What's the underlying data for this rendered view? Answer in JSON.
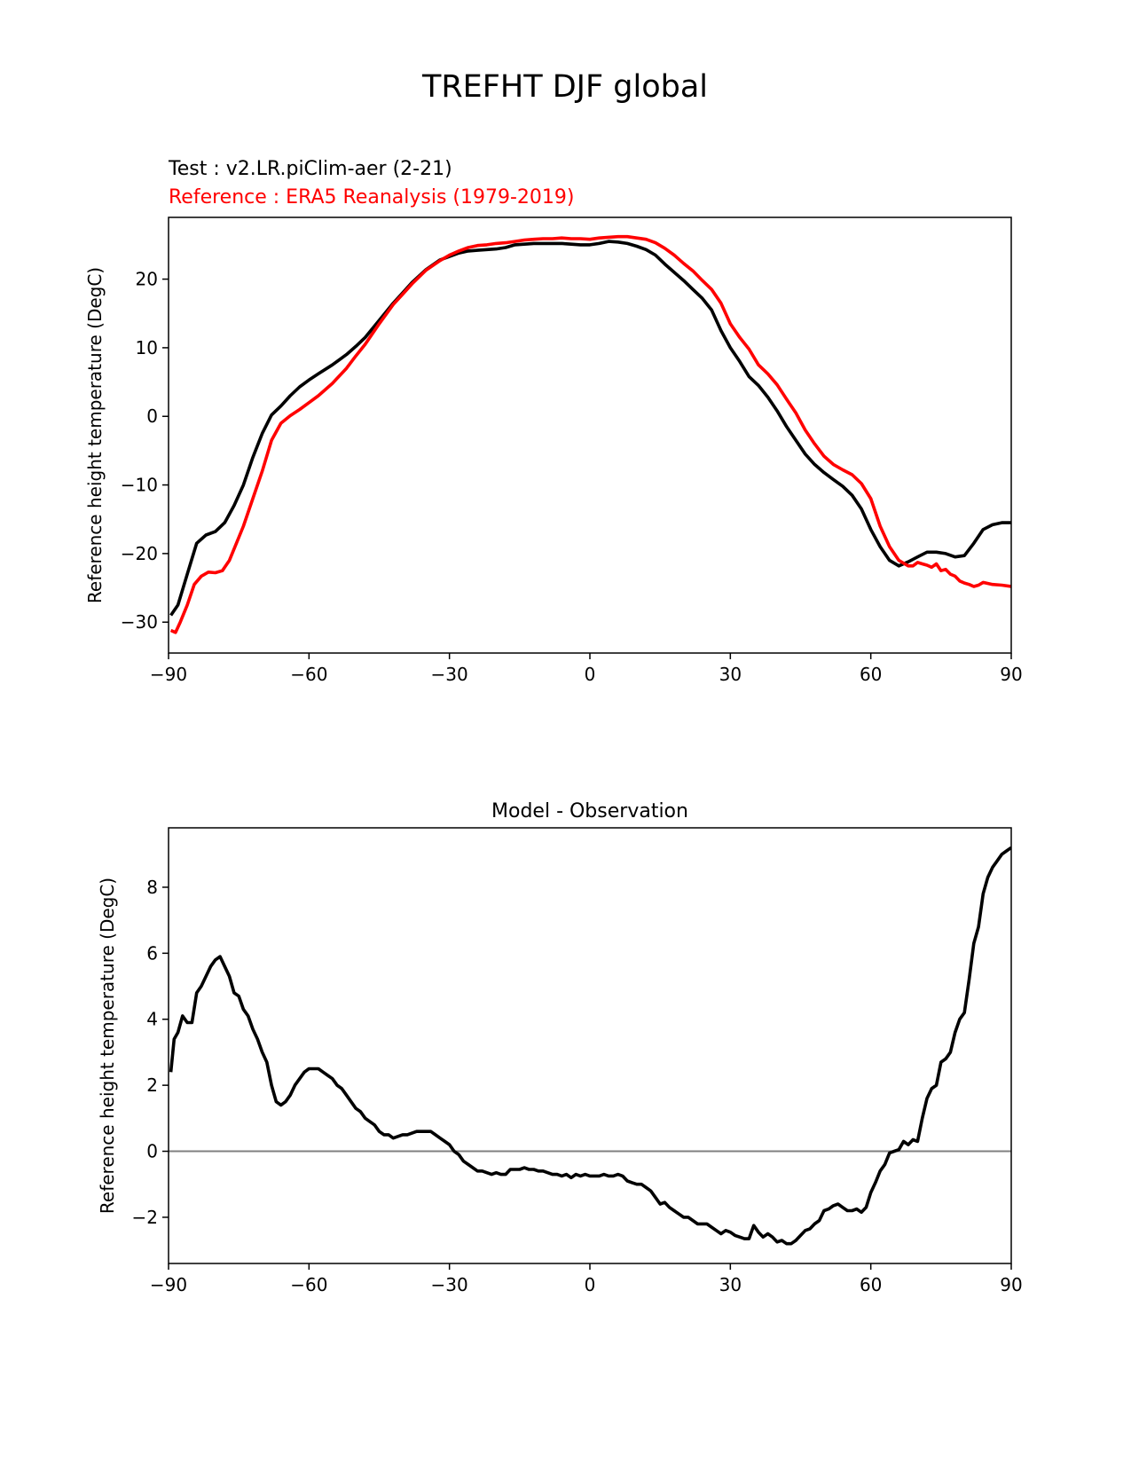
{
  "figure": {
    "title": "TREFHT DJF global",
    "test_label": "Test : v2.LR.piClim-aer (2-21)",
    "ref_label": "Reference : ERA5 Reanalysis (1979-2019)",
    "colors": {
      "test": "#000000",
      "reference": "#ff0000",
      "zero_line": "#808080"
    }
  },
  "chart_data": [
    {
      "type": "line",
      "title": "",
      "xlabel": "",
      "ylabel": "Reference height temperature (DegC)",
      "xlim": [
        -90,
        90
      ],
      "ylim": [
        -34.5,
        29
      ],
      "xticks": [
        -90,
        -60,
        -30,
        0,
        30,
        60,
        90
      ],
      "xtick_labels": [
        "−90",
        "−60",
        "−30",
        "0",
        "30",
        "60",
        "90"
      ],
      "yticks": [
        -30,
        -20,
        -10,
        0,
        10,
        20
      ],
      "ytick_labels": [
        "−30",
        "−20",
        "−10",
        "0",
        "10",
        "20"
      ],
      "series": [
        {
          "key": "test",
          "color": "#000000",
          "x": [
            -89.5,
            -88,
            -86,
            -84,
            -82,
            -80,
            -78,
            -76,
            -74,
            -72,
            -70,
            -68,
            -66,
            -64,
            -62,
            -60,
            -58,
            -55,
            -52,
            -50,
            -48,
            -45,
            -42,
            -40,
            -38,
            -35,
            -32,
            -30,
            -28,
            -26,
            -24,
            -22,
            -20,
            -18,
            -16,
            -14,
            -12,
            -10,
            -8,
            -6,
            -4,
            -2,
            0,
            2,
            4,
            6,
            8,
            10,
            12,
            14,
            16,
            18,
            20,
            22,
            24,
            26,
            28,
            30,
            32,
            34,
            36,
            38,
            40,
            42,
            44,
            46,
            48,
            50,
            52,
            54,
            56,
            58,
            60,
            62,
            64,
            66,
            68,
            70,
            72,
            74,
            76,
            78,
            80,
            82,
            84,
            86,
            88,
            90
          ],
          "y": [
            -29,
            -27.5,
            -23,
            -18.5,
            -17.3,
            -16.8,
            -15.5,
            -13,
            -10,
            -6,
            -2.5,
            0.2,
            1.5,
            3,
            4.3,
            5.3,
            6.2,
            7.5,
            9,
            10.2,
            11.5,
            14,
            16.5,
            18,
            19.5,
            21.4,
            22.8,
            23.3,
            23.8,
            24.1,
            24.2,
            24.3,
            24.4,
            24.6,
            25,
            25.1,
            25.2,
            25.2,
            25.2,
            25.2,
            25.1,
            25,
            25,
            25.2,
            25.5,
            25.4,
            25.2,
            24.8,
            24.3,
            23.5,
            22.2,
            21,
            19.8,
            18.5,
            17.2,
            15.5,
            12.5,
            10,
            8,
            5.8,
            4.5,
            2.8,
            0.8,
            -1.5,
            -3.5,
            -5.5,
            -7,
            -8.2,
            -9.2,
            -10.2,
            -11.5,
            -13.5,
            -16.5,
            -19,
            -21,
            -21.8,
            -21.2,
            -20.5,
            -19.8,
            -19.8,
            -20,
            -20.5,
            -20.3,
            -18.5,
            -16.5,
            -15.8,
            -15.5,
            -15.5
          ]
        },
        {
          "key": "reference",
          "color": "#ff0000",
          "x": [
            -89.5,
            -88.5,
            -87.5,
            -86,
            -84.5,
            -83,
            -81.5,
            -80,
            -78.5,
            -77,
            -75.5,
            -74,
            -72,
            -70,
            -68,
            -66,
            -64,
            -62,
            -60,
            -58,
            -55,
            -52,
            -50,
            -48,
            -45,
            -42,
            -40,
            -38,
            -35,
            -32,
            -30,
            -28,
            -26,
            -24,
            -22,
            -20,
            -18,
            -16,
            -14,
            -12,
            -10,
            -8,
            -6,
            -4,
            -2,
            0,
            2,
            4,
            6,
            8,
            10,
            12,
            14,
            16,
            18,
            20,
            22,
            24,
            26,
            28,
            30,
            32,
            34,
            36,
            38,
            40,
            42,
            44,
            46,
            48,
            50,
            52,
            54,
            56,
            58,
            60,
            62,
            64,
            66,
            68,
            69,
            70,
            71,
            72,
            73,
            74,
            75,
            76,
            77,
            78,
            79,
            80,
            81,
            82,
            83,
            84,
            86,
            88,
            90
          ],
          "y": [
            -31.2,
            -31.5,
            -30,
            -27.5,
            -24.5,
            -23.3,
            -22.7,
            -22.8,
            -22.5,
            -21,
            -18.5,
            -16,
            -12,
            -8,
            -3.5,
            -1,
            0.1,
            1,
            2,
            3,
            4.8,
            7,
            8.8,
            10.5,
            13.5,
            16.3,
            17.8,
            19.3,
            21.3,
            22.7,
            23.5,
            24.1,
            24.6,
            24.9,
            25,
            25.2,
            25.3,
            25.5,
            25.7,
            25.8,
            25.9,
            25.9,
            26,
            25.9,
            25.9,
            25.8,
            26,
            26.1,
            26.2,
            26.2,
            26,
            25.8,
            25.3,
            24.5,
            23.5,
            22.3,
            21.2,
            19.8,
            18.5,
            16.5,
            13.5,
            11.5,
            9.8,
            7.5,
            6.2,
            4.6,
            2.5,
            0.5,
            -2,
            -4,
            -5.8,
            -7,
            -7.8,
            -8.5,
            -9.8,
            -12,
            -16,
            -19,
            -21,
            -21.8,
            -21.8,
            -21.3,
            -21.5,
            -21.7,
            -22,
            -21.5,
            -22.5,
            -22.3,
            -23,
            -23.3,
            -24,
            -24.3,
            -24.5,
            -24.8,
            -24.6,
            -24.2,
            -24.5,
            -24.6,
            -24.8
          ]
        }
      ]
    },
    {
      "type": "line",
      "title": "Model - Observation",
      "xlabel": "",
      "ylabel": "Reference height temperature (DegC)",
      "xlim": [
        -90,
        90
      ],
      "ylim": [
        -3.4,
        9.8
      ],
      "xticks": [
        -90,
        -60,
        -30,
        0,
        30,
        60,
        90
      ],
      "xtick_labels": [
        "−90",
        "−60",
        "−30",
        "0",
        "30",
        "60",
        "90"
      ],
      "yticks": [
        -2,
        0,
        2,
        4,
        6,
        8
      ],
      "ytick_labels": [
        "−2",
        "0",
        "2",
        "4",
        "6",
        "8"
      ],
      "zero_line": 0,
      "series": [
        {
          "key": "difference",
          "color": "#000000",
          "x": [
            -89.5,
            -88.8,
            -88,
            -87,
            -86,
            -85,
            -84,
            -83,
            -82,
            -81,
            -80,
            -79,
            -78,
            -77,
            -76,
            -75,
            -74,
            -73,
            -72,
            -71,
            -70,
            -69,
            -68,
            -67,
            -66,
            -65,
            -64,
            -63,
            -62,
            -61,
            -60,
            -59,
            -58,
            -57,
            -56,
            -55,
            -54,
            -53,
            -52,
            -51,
            -50,
            -49,
            -48,
            -47,
            -46,
            -45,
            -44,
            -43,
            -42,
            -41,
            -40,
            -39,
            -38,
            -37,
            -36,
            -35,
            -34,
            -33,
            -32,
            -31,
            -30,
            -29,
            -28,
            -27,
            -26,
            -25,
            -24,
            -23,
            -22,
            -21,
            -20,
            -19,
            -18,
            -17,
            -16,
            -15,
            -14,
            -13,
            -12,
            -11,
            -10,
            -9,
            -8,
            -7,
            -6,
            -5,
            -4,
            -3,
            -2,
            -1,
            0,
            1,
            2,
            3,
            4,
            5,
            6,
            7,
            8,
            9,
            10,
            11,
            12,
            13,
            14,
            15,
            16,
            17,
            18,
            19,
            20,
            21,
            22,
            23,
            24,
            25,
            26,
            27,
            28,
            29,
            30,
            31,
            32,
            33,
            34,
            35,
            36,
            37,
            38,
            39,
            40,
            41,
            42,
            43,
            44,
            45,
            46,
            47,
            48,
            49,
            50,
            51,
            52,
            53,
            54,
            55,
            56,
            57,
            58,
            59,
            60,
            61,
            62,
            63,
            64,
            65,
            66,
            67,
            68,
            69,
            70,
            71,
            72,
            73,
            74,
            75,
            76,
            77,
            78,
            79,
            80,
            81,
            82,
            83,
            84,
            85,
            86,
            87,
            88,
            89,
            90
          ],
          "y": [
            2.4,
            3.4,
            3.6,
            4.1,
            3.9,
            3.9,
            4.8,
            5.0,
            5.3,
            5.6,
            5.8,
            5.9,
            5.6,
            5.3,
            4.8,
            4.7,
            4.3,
            4.1,
            3.7,
            3.4,
            3.0,
            2.7,
            2.0,
            1.5,
            1.4,
            1.5,
            1.7,
            2.0,
            2.2,
            2.4,
            2.5,
            2.5,
            2.5,
            2.4,
            2.3,
            2.2,
            2.0,
            1.9,
            1.7,
            1.5,
            1.3,
            1.2,
            1.0,
            0.9,
            0.8,
            0.6,
            0.5,
            0.5,
            0.4,
            0.45,
            0.5,
            0.5,
            0.55,
            0.6,
            0.6,
            0.6,
            0.6,
            0.5,
            0.4,
            0.3,
            0.2,
            0.0,
            -0.1,
            -0.3,
            -0.4,
            -0.5,
            -0.6,
            -0.6,
            -0.65,
            -0.7,
            -0.65,
            -0.7,
            -0.7,
            -0.55,
            -0.55,
            -0.55,
            -0.5,
            -0.55,
            -0.55,
            -0.6,
            -0.6,
            -0.65,
            -0.7,
            -0.7,
            -0.75,
            -0.7,
            -0.8,
            -0.7,
            -0.75,
            -0.7,
            -0.75,
            -0.75,
            -0.75,
            -0.7,
            -0.75,
            -0.75,
            -0.7,
            -0.75,
            -0.9,
            -0.95,
            -1.0,
            -1.0,
            -1.1,
            -1.2,
            -1.4,
            -1.6,
            -1.55,
            -1.7,
            -1.8,
            -1.9,
            -2.0,
            -2.0,
            -2.1,
            -2.2,
            -2.2,
            -2.2,
            -2.3,
            -2.4,
            -2.5,
            -2.4,
            -2.45,
            -2.55,
            -2.6,
            -2.65,
            -2.65,
            -2.25,
            -2.45,
            -2.6,
            -2.5,
            -2.6,
            -2.75,
            -2.7,
            -2.8,
            -2.8,
            -2.7,
            -2.55,
            -2.4,
            -2.35,
            -2.2,
            -2.1,
            -1.8,
            -1.75,
            -1.65,
            -1.6,
            -1.7,
            -1.8,
            -1.8,
            -1.75,
            -1.85,
            -1.7,
            -1.25,
            -0.95,
            -0.6,
            -0.4,
            -0.05,
            0.0,
            0.05,
            0.3,
            0.2,
            0.35,
            0.3,
            1.0,
            1.6,
            1.9,
            2.0,
            2.7,
            2.8,
            3.0,
            3.6,
            4.0,
            4.2,
            5.2,
            6.3,
            6.8,
            7.8,
            8.3,
            8.6,
            8.8,
            9.0,
            9.1,
            9.2
          ]
        }
      ]
    }
  ]
}
